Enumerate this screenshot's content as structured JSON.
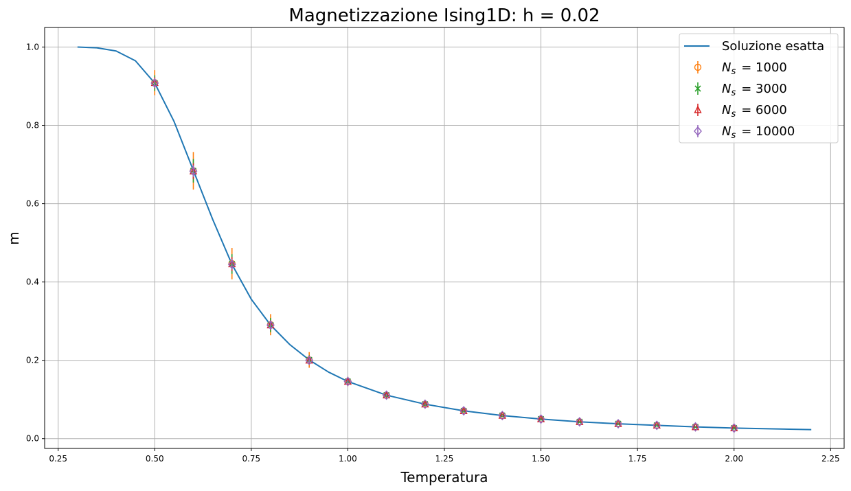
{
  "chart_data": {
    "type": "line",
    "title": "Magnetizzazione Ising1D: h = 0.02",
    "xlabel": "Temperatura",
    "ylabel": "m",
    "xlim": [
      0.215,
      2.285
    ],
    "ylim": [
      -0.025,
      1.05
    ],
    "xticks": [
      0.25,
      0.5,
      0.75,
      1.0,
      1.25,
      1.5,
      1.75,
      2.0,
      2.25
    ],
    "xtick_labels": [
      "0.25",
      "0.50",
      "0.75",
      "1.00",
      "1.25",
      "1.50",
      "1.75",
      "2.00",
      "2.25"
    ],
    "yticks": [
      0.0,
      0.2,
      0.4,
      0.6,
      0.8,
      1.0
    ],
    "ytick_labels": [
      "0.0",
      "0.2",
      "0.4",
      "0.6",
      "0.8",
      "1.0"
    ],
    "grid": true,
    "legend_position": "top-right",
    "exact": {
      "name": "Soluzione esatta",
      "color": "#1f77b4",
      "x": [
        0.3,
        0.35,
        0.4,
        0.45,
        0.5,
        0.55,
        0.6,
        0.65,
        0.7,
        0.75,
        0.8,
        0.85,
        0.9,
        0.95,
        1.0,
        1.1,
        1.2,
        1.3,
        1.4,
        1.5,
        1.6,
        1.7,
        1.8,
        1.9,
        2.0,
        2.1,
        2.2
      ],
      "y": [
        1.0,
        0.998,
        0.99,
        0.965,
        0.908,
        0.81,
        0.685,
        0.56,
        0.445,
        0.356,
        0.29,
        0.24,
        0.201,
        0.17,
        0.146,
        0.111,
        0.088,
        0.071,
        0.059,
        0.05,
        0.043,
        0.038,
        0.034,
        0.03,
        0.027,
        0.025,
        0.023
      ]
    },
    "x": [
      0.5,
      0.6,
      0.7,
      0.8,
      0.9,
      1.0,
      1.1,
      1.2,
      1.3,
      1.4,
      1.5,
      1.6,
      1.7,
      1.8,
      1.9,
      2.0
    ],
    "series": [
      {
        "name": "= 1000",
        "color": "#ff7f0e",
        "marker": "circle",
        "values": [
          0.909,
          0.684,
          0.447,
          0.291,
          0.201,
          0.146,
          0.111,
          0.088,
          0.071,
          0.059,
          0.05,
          0.043,
          0.038,
          0.034,
          0.03,
          0.027
        ],
        "errors": [
          0.032,
          0.048,
          0.04,
          0.027,
          0.02,
          0.012,
          0.008,
          0.006,
          0.005,
          0.004,
          0.003,
          0.003,
          0.003,
          0.002,
          0.002,
          0.002
        ]
      },
      {
        "name": "= 3000",
        "color": "#2ca02c",
        "marker": "x",
        "values": [
          0.908,
          0.684,
          0.446,
          0.29,
          0.201,
          0.146,
          0.111,
          0.088,
          0.071,
          0.059,
          0.05,
          0.043,
          0.038,
          0.034,
          0.03,
          0.027
        ],
        "errors": [
          0.02,
          0.03,
          0.025,
          0.018,
          0.012,
          0.008,
          0.005,
          0.004,
          0.003,
          0.003,
          0.002,
          0.002,
          0.002,
          0.002,
          0.001,
          0.001
        ]
      },
      {
        "name": "= 6000",
        "color": "#d62728",
        "marker": "triangle",
        "values": [
          0.909,
          0.683,
          0.446,
          0.29,
          0.2,
          0.146,
          0.111,
          0.088,
          0.071,
          0.059,
          0.05,
          0.043,
          0.038,
          0.034,
          0.03,
          0.027
        ],
        "errors": [
          0.014,
          0.02,
          0.018,
          0.012,
          0.009,
          0.006,
          0.004,
          0.003,
          0.002,
          0.002,
          0.002,
          0.001,
          0.001,
          0.001,
          0.001,
          0.001
        ]
      },
      {
        "name": "= 10000",
        "color": "#9467bd",
        "marker": "diamond",
        "values": [
          0.908,
          0.683,
          0.445,
          0.29,
          0.2,
          0.146,
          0.111,
          0.088,
          0.071,
          0.059,
          0.05,
          0.043,
          0.038,
          0.034,
          0.03,
          0.027
        ],
        "errors": [
          0.01,
          0.015,
          0.013,
          0.009,
          0.007,
          0.005,
          0.003,
          0.002,
          0.002,
          0.002,
          0.001,
          0.001,
          0.001,
          0.001,
          0.001,
          0.001
        ]
      }
    ],
    "legend_symbol": "N",
    "legend_subscript": "s"
  }
}
